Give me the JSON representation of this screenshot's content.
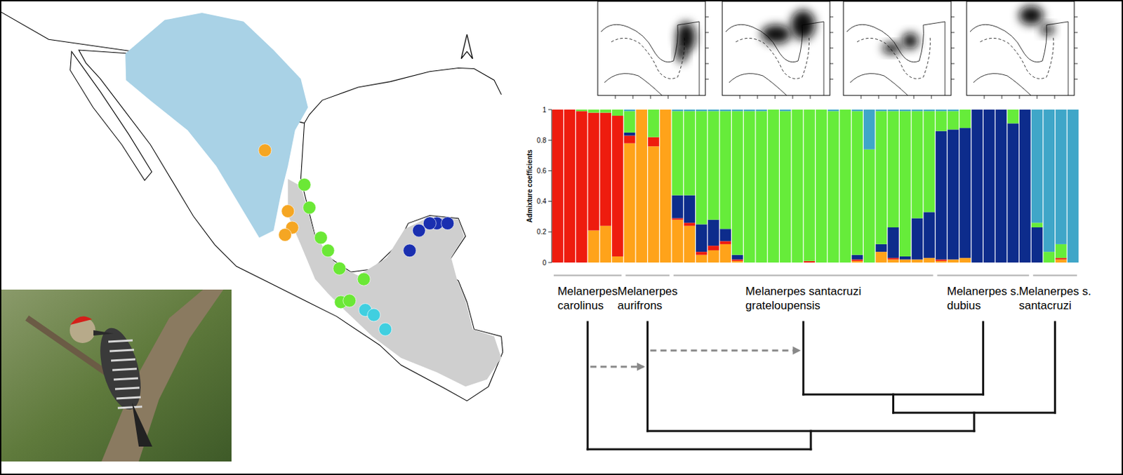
{
  "chart_data": {
    "type": "bar",
    "stacked": true,
    "ylabel": "Admixture coefficients",
    "ylim": [
      0,
      1
    ],
    "yticks": [
      0,
      0.2,
      0.4,
      0.6,
      0.8,
      1
    ],
    "categories": [
      null,
      null,
      null,
      null,
      null,
      null,
      null,
      null,
      null,
      null,
      null,
      null,
      null,
      null,
      null,
      null,
      null,
      null,
      null,
      null,
      null,
      null,
      null,
      null,
      null,
      null,
      null,
      null,
      null,
      null,
      null,
      null,
      null,
      null,
      null,
      null,
      null,
      null,
      null,
      null,
      null,
      null,
      null,
      null
    ],
    "series": [
      {
        "color": "#ffa31a",
        "values": [
          0,
          0,
          0,
          0.21,
          0.24,
          0.04,
          0.78,
          1,
          0.76,
          1,
          0.28,
          0.24,
          0.05,
          0.08,
          0.12,
          0.01,
          0,
          0,
          0,
          0,
          0,
          0,
          0,
          0,
          0,
          0.01,
          0,
          0.07,
          0.02,
          0.02,
          0.02,
          0.03,
          0.01,
          0.02,
          0.03,
          0,
          0,
          0,
          0,
          0,
          0,
          0,
          0.02,
          0
        ]
      },
      {
        "color": "#ee1c0e",
        "values": [
          1,
          1,
          0.99,
          0.77,
          0.74,
          0.92,
          0.05,
          0,
          0.06,
          0,
          0.01,
          0.02,
          0.02,
          0.03,
          0.02,
          0.01,
          0,
          0,
          0,
          0,
          0,
          0.01,
          0,
          0,
          0,
          0.01,
          0,
          0,
          0.01,
          0,
          0,
          0,
          0.01,
          0,
          0,
          0,
          0,
          0,
          0,
          0,
          0,
          0,
          0.01,
          0
        ]
      },
      {
        "color": "#0d2c8c",
        "values": [
          0,
          0,
          0,
          0,
          0,
          0,
          0.02,
          0,
          0,
          0,
          0.15,
          0.18,
          0.18,
          0.17,
          0.08,
          0.03,
          0,
          0,
          0,
          0,
          0,
          0,
          0,
          0,
          0,
          0.03,
          0,
          0.05,
          0.2,
          0.02,
          0.27,
          0.3,
          0.84,
          0.85,
          0.85,
          1,
          1,
          1,
          0.91,
          1,
          0.23,
          0,
          0,
          0
        ]
      },
      {
        "color": "#66ec3a",
        "values": [
          0,
          0,
          0.01,
          0.02,
          0.02,
          0.04,
          0.14,
          0,
          0.18,
          0,
          0.55,
          0.55,
          0.74,
          0.71,
          0.77,
          0.94,
          0.99,
          0.99,
          1,
          0.99,
          1,
          0.99,
          1,
          0.99,
          1,
          0.94,
          0.74,
          0.87,
          0.76,
          0.95,
          0.7,
          0.66,
          0.13,
          0.12,
          0.12,
          0,
          0,
          0,
          0.09,
          0,
          0.03,
          0.07,
          0.09,
          0
        ]
      },
      {
        "color": "#3fa6c8",
        "values": [
          0,
          0,
          0,
          0,
          0,
          0,
          0.01,
          0,
          0,
          0,
          0.01,
          0.01,
          0.01,
          0.01,
          0.01,
          0.01,
          0.01,
          0.01,
          0,
          0.01,
          0,
          0,
          0,
          0.01,
          0,
          0.01,
          0.26,
          0.01,
          0.01,
          0.01,
          0.01,
          0.01,
          0.01,
          0.01,
          0,
          0,
          0,
          0,
          0,
          0,
          0.74,
          0.93,
          0.88,
          1
        ]
      }
    ],
    "groups": [
      {
        "label": [
          "Melanerpes",
          "carolinus"
        ],
        "start": 0,
        "end": 5
      },
      {
        "label": [
          "Melanerpes",
          "aurifrons"
        ],
        "start": 6,
        "end": 9
      },
      {
        "label": [
          "Melanerpes santacruzi",
          "grateloupensis"
        ],
        "start": 10,
        "end": 31
      },
      {
        "label": [
          "Melanerpes s.",
          "dubius"
        ],
        "start": 32,
        "end": 39
      },
      {
        "label": [
          "Melanerpes s.",
          "santacruzi"
        ],
        "start": 40,
        "end": 43
      }
    ],
    "tree": [
      0,
      [
        1,
        [
          [
            2,
            3
          ],
          4
        ]
      ]
    ],
    "gene_flow": [
      [
        0,
        1
      ],
      [
        1,
        2
      ]
    ]
  }
}
